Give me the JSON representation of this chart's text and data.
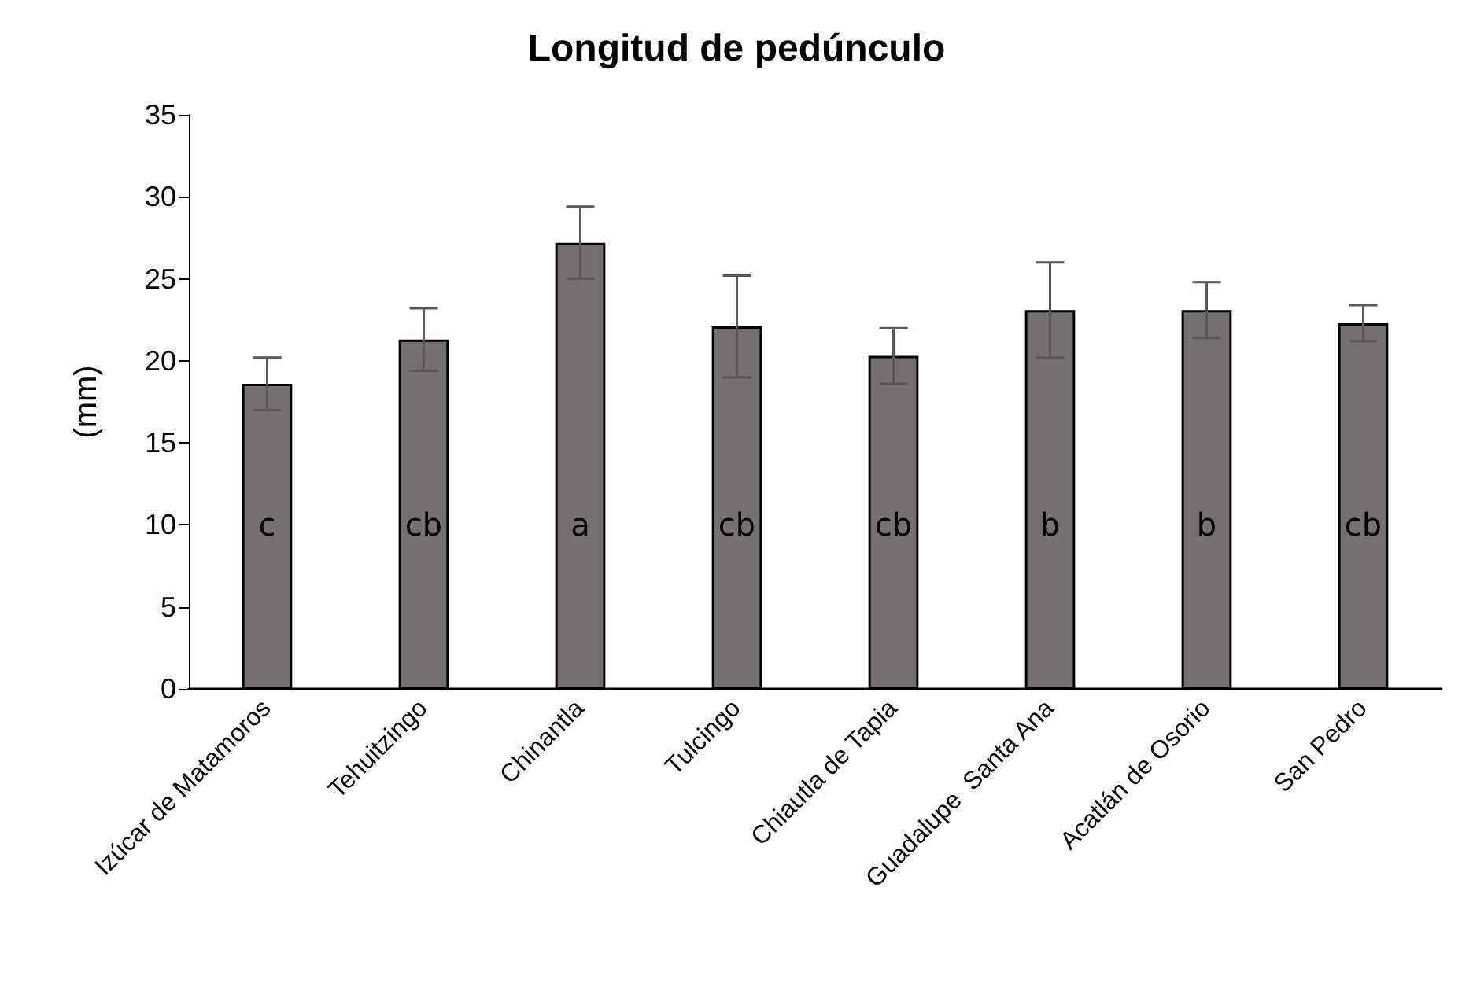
{
  "chart_data": {
    "type": "bar",
    "title": "Longitud de pedúnculo",
    "ylabel": "(mm)",
    "categories": [
      "Izúcar de Matamoros",
      "Tehuitzingo",
      "Chinantla",
      "Tulcingo",
      "Chiautla de Tapia",
      "Guadalupe  Santa Ana",
      "Acatlán de Osorio",
      "San Pedro"
    ],
    "series": [
      {
        "color": "#767171",
        "values": [
          18.6,
          21.3,
          27.2,
          22.1,
          20.3,
          23.1,
          23.1,
          22.3
        ],
        "errors": [
          1.6,
          1.9,
          2.2,
          3.1,
          1.7,
          2.9,
          1.7,
          1.1
        ]
      }
    ],
    "ylim": [
      0,
      35
    ],
    "yticks": [
      0,
      5,
      10,
      15,
      20,
      25,
      30,
      35
    ],
    "grid": false,
    "annotations": [
      "c",
      "cb",
      "a",
      "cb",
      "cb",
      "b",
      "b",
      "cb"
    ]
  }
}
